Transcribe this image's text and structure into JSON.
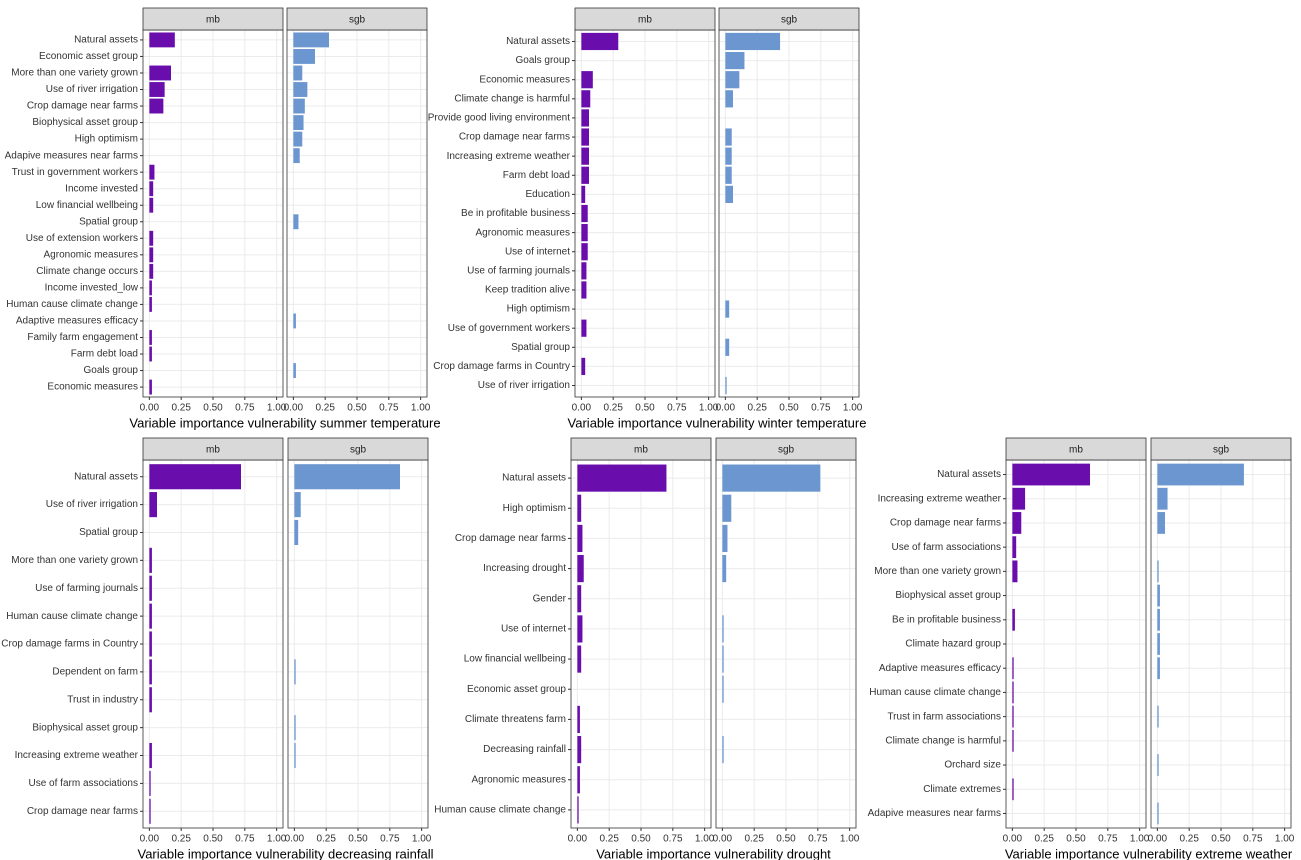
{
  "chart_data": [
    {
      "type": "bar",
      "orientation": "horizontal",
      "xlabel": "Variable importance vulnerability summer temperature",
      "categories": [
        "Natural assets",
        "Economic asset group",
        "More than one variety grown",
        "Use of river irrigation",
        "Crop damage near farms",
        "Biophysical asset group",
        "High optimism",
        "Adapive measures near farms",
        "Trust in government workers",
        "Income invested",
        "Low financial wellbeing",
        "Spatial group",
        "Use of extension workers",
        "Agronomic measures",
        "Climate change occurs",
        "Income invested_low",
        "Human cause climate change",
        "Adaptive measures efficacy",
        "Family farm engagement",
        "Farm debt load",
        "Goals group",
        "Economic measures"
      ],
      "series": [
        {
          "name": "mb",
          "color": "#6a0dad",
          "values": [
            0.2,
            null,
            0.17,
            0.12,
            0.11,
            null,
            null,
            null,
            0.04,
            0.03,
            0.03,
            null,
            0.03,
            0.03,
            0.03,
            0.02,
            0.02,
            null,
            0.02,
            0.02,
            null,
            0.02
          ]
        },
        {
          "name": "sgb",
          "color": "#6b96d0",
          "values": [
            0.28,
            0.17,
            0.07,
            0.11,
            0.09,
            0.08,
            0.07,
            0.05,
            null,
            null,
            null,
            0.04,
            null,
            null,
            null,
            null,
            null,
            0.02,
            null,
            null,
            0.02,
            null
          ]
        }
      ],
      "xlim": [
        0,
        1
      ],
      "xticks": [
        {
          "value": 0,
          "label": "0.00"
        },
        {
          "value": 0.25,
          "label": "0.25"
        },
        {
          "value": 0.5,
          "label": "0.50"
        },
        {
          "value": 0.75,
          "label": "0.75"
        },
        {
          "value": 1,
          "label": "1.00"
        }
      ],
      "grid": true
    },
    {
      "type": "bar",
      "orientation": "horizontal",
      "xlabel": "Variable importance vulnerability winter temperature",
      "categories": [
        "Natural assets",
        "Goals group",
        "Economic measures",
        "Climate change is harmful",
        "Provide good living environment",
        "Crop damage near farms",
        "Increasing extreme weather",
        "Farm debt load",
        "Education",
        "Be in profitable business",
        "Agronomic measures",
        "Use of internet",
        "Use of farming journals",
        "Keep tradition alive",
        "High optimism",
        "Use of government workers",
        "Spatial group",
        "Crop damage farms in Country",
        "Use of river irrigation"
      ],
      "series": [
        {
          "name": "mb",
          "color": "#6a0dad",
          "values": [
            0.29,
            null,
            0.09,
            0.07,
            0.06,
            0.06,
            0.06,
            0.06,
            0.03,
            0.05,
            0.05,
            0.05,
            0.04,
            0.04,
            null,
            0.04,
            null,
            0.03,
            null
          ]
        },
        {
          "name": "sgb",
          "color": "#6b96d0",
          "values": [
            0.43,
            0.15,
            0.11,
            0.06,
            null,
            0.05,
            0.05,
            0.05,
            0.06,
            null,
            null,
            null,
            null,
            null,
            0.03,
            null,
            0.03,
            null,
            0.01
          ]
        }
      ],
      "xlim": [
        0,
        1
      ],
      "xticks": [
        {
          "value": 0,
          "label": "0.00"
        },
        {
          "value": 0.25,
          "label": "0.25"
        },
        {
          "value": 0.5,
          "label": "0.50"
        },
        {
          "value": 0.75,
          "label": "0.75"
        },
        {
          "value": 1,
          "label": "1.00"
        }
      ],
      "grid": true
    },
    {
      "type": "bar",
      "orientation": "horizontal",
      "xlabel": "Variable importance vulnerability decreasing rainfall",
      "categories": [
        "Natural assets",
        "Use of river irrigation",
        "Spatial group",
        "More than one variety grown",
        "Use of farming journals",
        "Human cause climate change",
        "Crop damage farms in Country",
        "Dependent on farm",
        "Trust in industry",
        "Biophysical asset group",
        "Increasing extreme weather",
        "Use of farm associations",
        "Crop damage near farms"
      ],
      "series": [
        {
          "name": "mb",
          "color": "#6a0dad",
          "values": [
            0.72,
            0.06,
            null,
            0.02,
            0.02,
            0.02,
            0.02,
            0.02,
            0.02,
            null,
            0.02,
            0.01,
            0.01
          ]
        },
        {
          "name": "sgb",
          "color": "#6b96d0",
          "values": [
            0.83,
            0.05,
            0.03,
            null,
            null,
            null,
            null,
            0.01,
            null,
            0.01,
            0.01,
            null,
            null
          ]
        }
      ],
      "xlim": [
        0,
        1
      ],
      "xticks": [
        {
          "value": 0,
          "label": "0.00"
        },
        {
          "value": 0.25,
          "label": "0.25"
        },
        {
          "value": 0.5,
          "label": "0.50"
        },
        {
          "value": 0.75,
          "label": "0.75"
        },
        {
          "value": 1,
          "label": "1.00"
        }
      ],
      "grid": true
    },
    {
      "type": "bar",
      "orientation": "horizontal",
      "xlabel": "Variable importance vulnerability drought",
      "categories": [
        "Natural assets",
        "High optimism",
        "Crop damage near farms",
        "Increasing drought",
        "Gender",
        "Use of internet",
        "Low financial wellbeing",
        "Economic asset group",
        "Climate threatens farm",
        "Decreasing rainfall",
        "Agronomic measures",
        "Human cause climate change"
      ],
      "series": [
        {
          "name": "mb",
          "color": "#6a0dad",
          "values": [
            0.7,
            0.03,
            0.04,
            0.05,
            0.03,
            0.04,
            0.03,
            null,
            0.02,
            0.03,
            0.02,
            0.01
          ]
        },
        {
          "name": "sgb",
          "color": "#6b96d0",
          "values": [
            0.77,
            0.07,
            0.04,
            0.03,
            null,
            0.01,
            0.01,
            0.01,
            null,
            0.01,
            null,
            null
          ]
        }
      ],
      "xlim": [
        0,
        1
      ],
      "xticks": [
        {
          "value": 0,
          "label": "0.00"
        },
        {
          "value": 0.25,
          "label": "0.25"
        },
        {
          "value": 0.5,
          "label": "0.50"
        },
        {
          "value": 0.75,
          "label": "0.75"
        },
        {
          "value": 1,
          "label": "1.00"
        }
      ],
      "grid": true
    },
    {
      "type": "bar",
      "orientation": "horizontal",
      "xlabel": "Variable importance vulnerability extreme weather",
      "categories": [
        "Natural assets",
        "Increasing extreme weather",
        "Crop damage near farms",
        "Use of farm associations",
        "More than one variety grown",
        "Biophysical asset group",
        "Be in profitable business",
        "Climate hazard group",
        "Adaptive measures efficacy",
        "Human cause climate change",
        "Trust in farm associations",
        "Climate change is harmful",
        "Orchard size",
        "Climate extremes",
        "Adapive measures near farms"
      ],
      "series": [
        {
          "name": "mb",
          "color": "#6a0dad",
          "values": [
            0.61,
            0.1,
            0.07,
            0.03,
            0.04,
            null,
            0.02,
            null,
            0.01,
            0.01,
            0.01,
            0.01,
            null,
            0.01,
            null
          ]
        },
        {
          "name": "sgb",
          "color": "#6b96d0",
          "values": [
            0.68,
            0.08,
            0.06,
            null,
            0.01,
            0.02,
            0.02,
            0.02,
            0.02,
            null,
            0.01,
            null,
            0.01,
            null,
            0.01
          ]
        }
      ],
      "xlim": [
        0,
        1
      ],
      "xticks": [
        {
          "value": 0,
          "label": "0.00"
        },
        {
          "value": 0.25,
          "label": "0.25"
        },
        {
          "value": 0.5,
          "label": "0.50"
        },
        {
          "value": 0.75,
          "label": "0.75"
        },
        {
          "value": 1,
          "label": "1.00"
        }
      ],
      "grid": true
    }
  ]
}
